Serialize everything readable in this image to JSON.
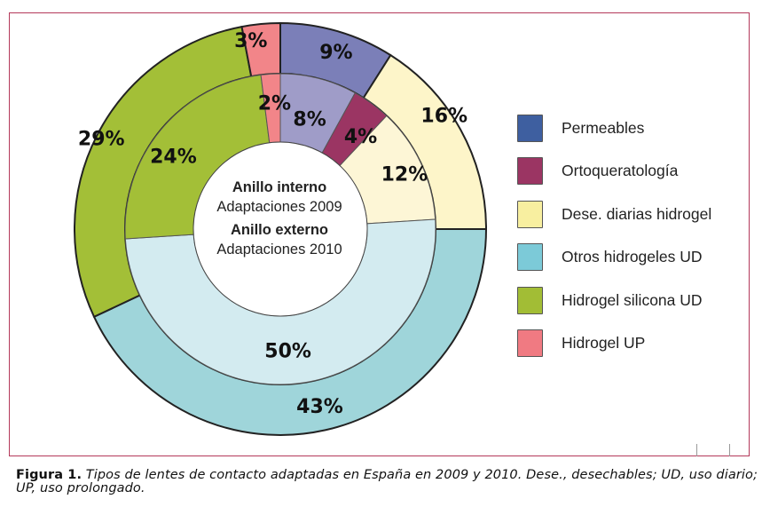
{
  "chart_data": {
    "type": "pie",
    "subtype": "nested-donut",
    "title": "",
    "categories": [
      "Permeables",
      "Ortoqueratología",
      "Dese. diarias hidrogel",
      "Otros hidrogeles UD",
      "Hidrogel silicona UD",
      "Hidrogel UP"
    ],
    "series": [
      {
        "name": "Anillo interno — Adaptaciones 2009",
        "ring": "inner",
        "values": [
          8,
          4,
          12,
          50,
          24,
          2
        ],
        "labels": [
          "8%",
          "4%",
          "12%",
          "50%",
          "24%",
          "2%"
        ]
      },
      {
        "name": "Anillo externo — Adaptaciones 2010",
        "ring": "outer",
        "values": [
          9,
          0,
          16,
          43,
          29,
          3
        ],
        "labels": [
          "9%",
          "",
          "16%",
          "43%",
          "29%",
          "3%"
        ]
      }
    ],
    "legend_position": "right",
    "start_angle": "12 o'clock, clockwise"
  },
  "colors": {
    "legend": [
      "#3e5fa0",
      "#9b3563",
      "#f8efa0",
      "#7ccad8",
      "#a2bd35",
      "#f07a82"
    ],
    "outer": [
      "#7b7fb8",
      "#9b3563",
      "#fdf5c9",
      "#9fd5da",
      "#a3bf37",
      "#f28589"
    ],
    "inner": [
      "#9f9cc8",
      "#9b3563",
      "#fdf6d6",
      "#d3ebf0",
      "#a3bf37",
      "#f28589"
    ],
    "frame": "#b4395a"
  },
  "center": {
    "line1": "Anillo interno",
    "line2": "Adaptaciones 2009",
    "line3": "Anillo externo",
    "line4": "Adaptaciones 2010"
  },
  "legend": {
    "items": [
      {
        "label": "Permeables"
      },
      {
        "label": "Ortoqueratología"
      },
      {
        "label": "Dese. diarias hidrogel"
      },
      {
        "label": "Otros hidrogeles UD"
      },
      {
        "label": "Hidrogel silicona UD"
      },
      {
        "label": "Hidrogel UP"
      }
    ]
  },
  "caption": {
    "lead": "Figura 1.",
    "body": " Tipos de lentes de contacto adaptadas en España en 2009 y 2010. Dese., desechables; UD, uso diario; UP, uso prolongado."
  }
}
